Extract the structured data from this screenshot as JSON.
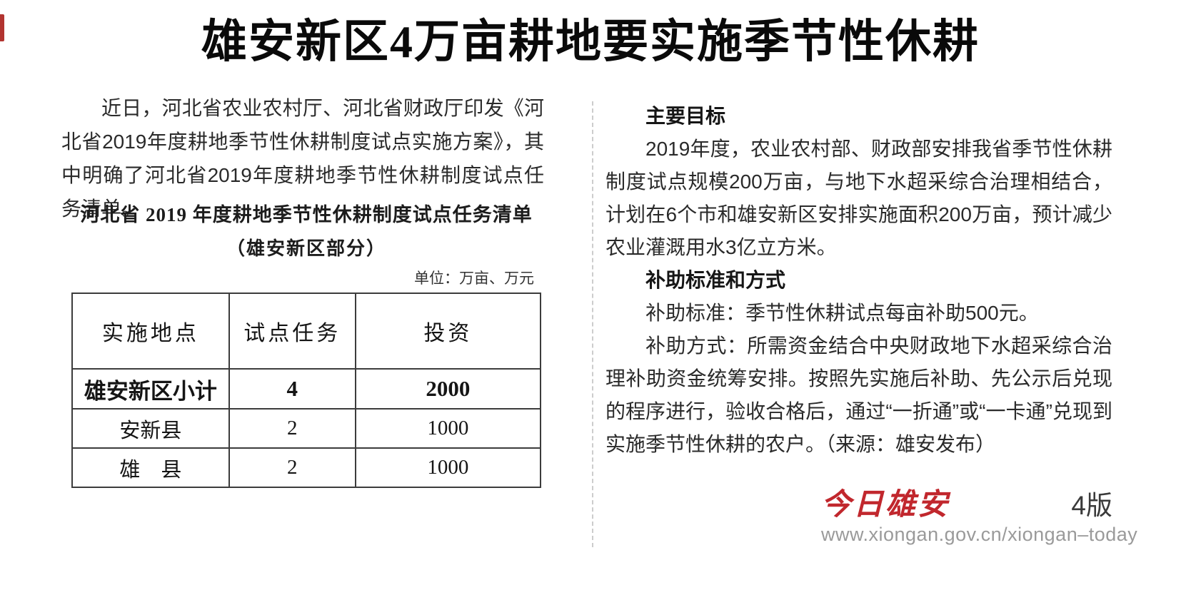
{
  "page": {
    "title": "雄安新区4万亩耕地要实施季节性休耕"
  },
  "left_column": {
    "intro_paragraph": "近日，河北省农业农村厅、河北省财政厅印发《河北省2019年度耕地季节性休耕制度试点实施方案》，其中明确了河北省2019年度耕地季节性休耕制度试点任务清单。",
    "table": {
      "title_line1": "河北省 2019 年度耕地季节性休耕制度试点任务清单",
      "title_line2": "（雄安新区部分）",
      "unit_note": "单位：万亩、万元",
      "headers": [
        "实施地点",
        "试点任务",
        "投资"
      ],
      "rows": [
        {
          "location": "雄安新区小计",
          "task": "4",
          "investment": "2000"
        },
        {
          "location": "安新县",
          "task": "2",
          "investment": "1000"
        },
        {
          "location": "雄　县",
          "task": "2",
          "investment": "1000"
        }
      ]
    }
  },
  "right_column": {
    "heading1": "主要目标",
    "para1": "2019年度，农业农村部、财政部安排我省季节性休耕制度试点规模200万亩，与地下水超采综合治理相结合，计划在6个市和雄安新区安排实施面积200万亩，预计减少农业灌溉用水3亿立方米。",
    "heading2": "补助标准和方式",
    "para2": "补助标准：季节性休耕试点每亩补助500元。",
    "para3": "补助方式：所需资金结合中央财政地下水超采综合治理补助资金统筹安排。按照先实施后补助、先公示后兑现的程序进行，验收合格后，通过“一折通”或“一卡通”兑现到实施季节性休耕的农户。（来源：雄安发布）"
  },
  "footer": {
    "logo_text": "今日雄安",
    "page_number": "4版",
    "url": "www.xiongan.gov.cn/xiongan–today"
  },
  "colors": {
    "logo_red": "#c1272d",
    "url_gray": "#9a9a9a",
    "divider_gray": "#cccccc",
    "body_text": "#2a2a2a"
  },
  "chart_data": {
    "type": "table",
    "title": "河北省 2019 年度耕地季节性休耕制度试点任务清单（雄安新区部分）",
    "unit": "万亩、万元",
    "columns": [
      "实施地点",
      "试点任务",
      "投资"
    ],
    "rows": [
      [
        "雄安新区小计",
        4,
        2000
      ],
      [
        "安新县",
        2,
        1000
      ],
      [
        "雄县",
        2,
        1000
      ]
    ]
  }
}
